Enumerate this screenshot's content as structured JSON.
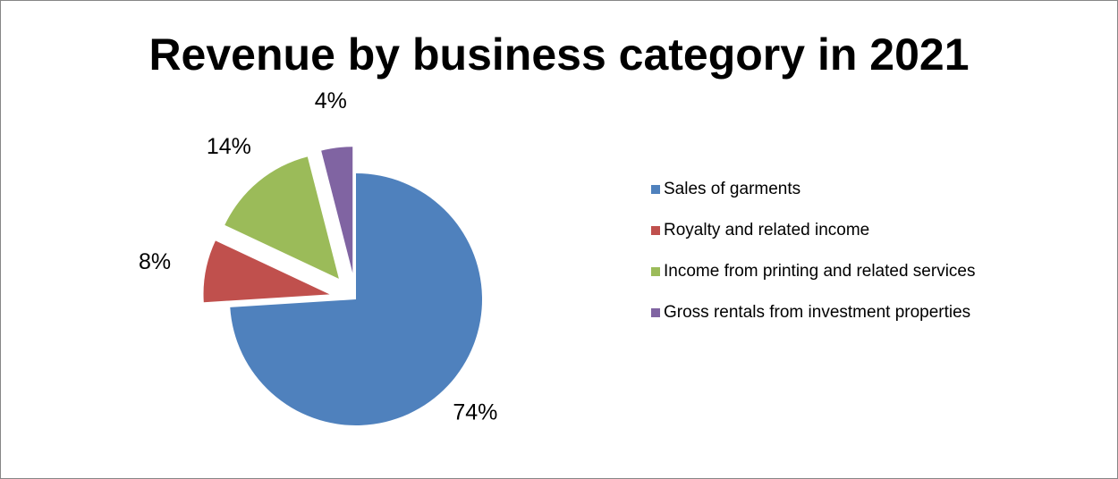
{
  "chart_data": {
    "type": "pie",
    "title": "Revenue by business category in 2021",
    "categories": [
      "Sales of garments",
      "Royalty and related income",
      "Income from printing and related services",
      "Gross rentals from investment properties"
    ],
    "values": [
      74,
      8,
      14,
      4
    ],
    "data_labels": [
      "74%",
      "8%",
      "14%",
      "4%"
    ],
    "colors": [
      "#4f81bd",
      "#c0504d",
      "#9bbb59",
      "#8064a2"
    ],
    "exploded": [
      false,
      true,
      true,
      true
    ],
    "legend_position": "right"
  }
}
